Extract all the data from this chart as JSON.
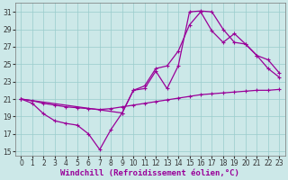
{
  "xlabel": "Windchill (Refroidissement éolien,°C)",
  "bg_color": "#cce8e8",
  "line_color": "#990099",
  "grid_color": "#99cccc",
  "xlim": [
    -0.5,
    23.5
  ],
  "ylim": [
    14.5,
    32
  ],
  "yticks": [
    15,
    17,
    19,
    21,
    23,
    25,
    27,
    29,
    31
  ],
  "xticks": [
    0,
    1,
    2,
    3,
    4,
    5,
    6,
    7,
    8,
    9,
    10,
    11,
    12,
    13,
    14,
    15,
    16,
    17,
    18,
    19,
    20,
    21,
    22,
    23
  ],
  "line1_x": [
    0,
    1,
    2,
    3,
    4,
    5,
    6,
    7,
    8,
    9,
    10,
    11,
    12,
    13,
    14,
    15,
    16,
    17,
    18,
    19,
    20,
    21,
    22,
    23
  ],
  "line1_y": [
    21.0,
    20.8,
    20.5,
    20.3,
    20.1,
    20.0,
    19.9,
    19.8,
    19.9,
    20.1,
    20.3,
    20.5,
    20.7,
    20.9,
    21.1,
    21.3,
    21.5,
    21.6,
    21.7,
    21.8,
    21.9,
    22.0,
    22.0,
    22.1
  ],
  "line2_x": [
    0,
    1,
    2,
    3,
    4,
    5,
    6,
    7,
    8,
    9,
    10,
    11,
    12,
    13,
    14,
    15,
    16,
    17,
    18,
    19,
    20,
    21,
    22,
    23
  ],
  "line2_y": [
    21.0,
    20.5,
    19.3,
    18.5,
    18.2,
    18.0,
    17.0,
    15.2,
    17.5,
    19.4,
    22.0,
    22.2,
    24.2,
    22.2,
    24.8,
    31.0,
    31.1,
    31.0,
    29.0,
    27.5,
    27.3,
    26.0,
    24.5,
    23.5
  ],
  "line3_x": [
    0,
    9,
    10,
    11,
    12,
    13,
    14,
    15,
    16,
    17,
    18,
    19,
    20,
    21,
    22,
    23
  ],
  "line3_y": [
    21.0,
    19.4,
    22.0,
    22.5,
    24.5,
    24.8,
    26.5,
    29.5,
    31.0,
    28.8,
    27.5,
    28.5,
    27.3,
    26.0,
    25.5,
    24.0
  ],
  "marker": "+",
  "markersize": 3,
  "linewidth": 0.9,
  "tick_fontsize": 5.5,
  "label_fontsize": 6.5
}
